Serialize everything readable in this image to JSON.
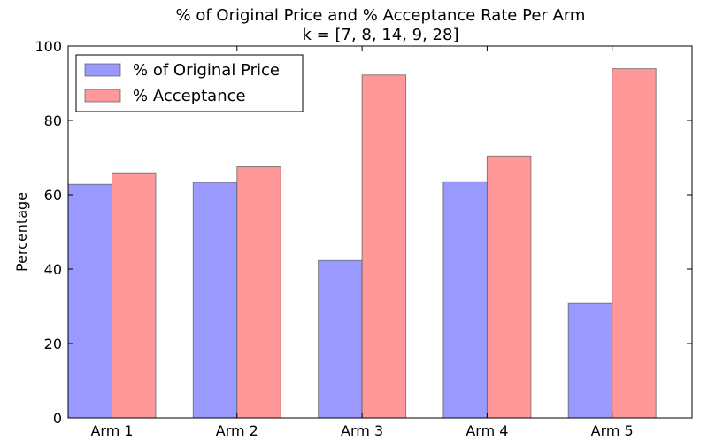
{
  "chart_data": {
    "type": "bar",
    "title": "% of Original Price and % Acceptance Rate Per Arm",
    "subtitle": "k = [7, 8, 14, 9, 28]",
    "xlabel": "",
    "ylabel": "Percentage",
    "ylim": [
      0,
      100
    ],
    "yticks": [
      0,
      20,
      40,
      60,
      80,
      100
    ],
    "categories": [
      "Arm 1",
      "Arm 2",
      "Arm 3",
      "Arm 4",
      "Arm 5"
    ],
    "series": [
      {
        "name": "% of Original Price",
        "color": "#9999ff",
        "values": [
          62.8,
          63.3,
          42.3,
          63.5,
          30.9
        ]
      },
      {
        "name": "% Acceptance",
        "color": "#ff9999",
        "values": [
          65.9,
          67.5,
          92.2,
          70.4,
          93.9
        ]
      }
    ],
    "legend_position": "top-left",
    "grid": false
  }
}
